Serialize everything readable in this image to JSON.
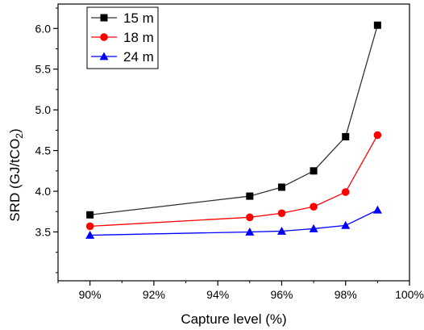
{
  "chart_data": {
    "type": "line",
    "xlabel": "Capture level (%)",
    "ylabel": "SRD (GJ/tCO2)",
    "ylabel_parts": {
      "main": "SRD (GJ/tCO",
      "subscript": "2",
      "close": ")"
    },
    "xlim": [
      89,
      100
    ],
    "ylim": [
      2.9,
      6.3
    ],
    "x_ticks": [
      90,
      92,
      94,
      96,
      98,
      100
    ],
    "x_tick_labels": [
      "90%",
      "92%",
      "94%",
      "96%",
      "98%",
      "100%"
    ],
    "y_ticks": [
      3.5,
      4.0,
      4.5,
      5.0,
      5.5,
      6.0
    ],
    "y_tick_labels": [
      "3.5",
      "4.0",
      "4.5",
      "5.0",
      "5.5",
      "6.0"
    ],
    "grid": false,
    "legend_position": "top-left",
    "x": [
      90,
      95,
      96,
      97,
      98,
      99
    ],
    "series": [
      {
        "name": "15 m",
        "values": [
          3.71,
          3.94,
          4.05,
          4.25,
          4.67,
          6.04
        ],
        "color": "#000000",
        "marker": "square"
      },
      {
        "name": "18 m",
        "values": [
          3.57,
          3.68,
          3.73,
          3.81,
          3.99,
          4.69
        ],
        "color": "#ff0000",
        "marker": "circle"
      },
      {
        "name": "24 m",
        "values": [
          3.46,
          3.5,
          3.51,
          3.54,
          3.58,
          3.77
        ],
        "color": "#0000ff",
        "marker": "triangle"
      }
    ]
  }
}
